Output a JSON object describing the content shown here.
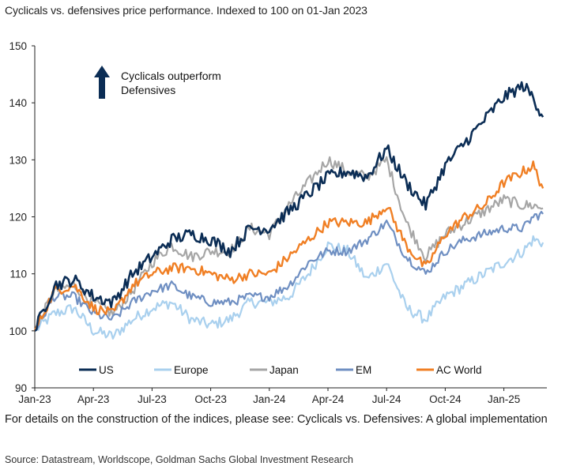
{
  "title": "Cyclicals vs. defensives price performance. Indexed to 100 on 01-Jan 2023",
  "note": "For details on the construction of the indices, please see: Cyclicals vs. Defensives: A global implementation",
  "source": "Source: Datastream, Worldscope, Goldman Sachs Global Investment Research",
  "chart_data": {
    "type": "line",
    "title": "Cyclicals vs. defensives price performance. Indexed to 100 on 01-Jan 2023",
    "xlabel": "",
    "ylabel": "",
    "ylim": [
      90,
      150
    ],
    "yticks": [
      90,
      100,
      110,
      120,
      130,
      140,
      150
    ],
    "xticks": [
      "Jan-23",
      "Apr-23",
      "Jul-23",
      "Oct-23",
      "Jan-24",
      "Apr-24",
      "Jul-24",
      "Oct-24",
      "Jan-25"
    ],
    "xrange_months": [
      0,
      26.2
    ],
    "grid": false,
    "legend_position": "bottom",
    "annotation": {
      "line1": "Cyclicals outperform",
      "line2": "Defensives",
      "arrow": "up-arrow"
    },
    "x": [
      0,
      1,
      2,
      3,
      4,
      5,
      6,
      7,
      8,
      9,
      10,
      11,
      12,
      13,
      14,
      15,
      16,
      17,
      18,
      19,
      20,
      21,
      22,
      23,
      24,
      25,
      25.5,
      26
    ],
    "series": [
      {
        "name": "US",
        "color": "#0b2d55",
        "width": 2.6,
        "values": [
          100,
          108,
          109,
          106,
          105,
          110,
          113,
          116,
          117,
          116,
          114,
          118,
          118,
          121,
          124,
          127,
          128,
          127,
          132,
          126,
          122,
          129,
          133,
          137,
          141,
          143,
          141,
          137.5
        ]
      },
      {
        "name": "Europe",
        "color": "#a9d0ee",
        "width": 2.2,
        "values": [
          100,
          103,
          104,
          100,
          99,
          102,
          104,
          105,
          102,
          101,
          102,
          105,
          105,
          106,
          110,
          115,
          114,
          109,
          112,
          104,
          102,
          106,
          108,
          110,
          112,
          114,
          116,
          115.5
        ]
      },
      {
        "name": "Japan",
        "color": "#a6a6a6",
        "width": 2.2,
        "values": [
          100,
          107,
          108,
          105,
          103,
          107,
          112,
          115,
          113,
          114,
          114,
          118,
          117,
          122,
          126,
          130,
          128,
          127,
          130,
          119,
          113,
          117,
          119,
          121,
          123,
          122,
          122,
          121.5
        ]
      },
      {
        "name": "EM",
        "color": "#6f8fc2",
        "width": 2.2,
        "values": [
          100,
          106,
          106,
          103,
          102,
          105,
          107,
          108,
          106,
          105,
          105,
          106,
          106,
          108,
          112,
          114,
          114,
          116,
          119,
          113,
          110,
          114,
          116,
          117,
          118,
          118,
          120,
          120.5
        ]
      },
      {
        "name": "AC World",
        "color": "#f07f24",
        "width": 2.4,
        "values": [
          100,
          107,
          108,
          104,
          103,
          108,
          110,
          111,
          111,
          110,
          109,
          110,
          110,
          113,
          116,
          119,
          119,
          119,
          122,
          115,
          111,
          117,
          120,
          122,
          126,
          128,
          129,
          125
        ]
      }
    ]
  }
}
